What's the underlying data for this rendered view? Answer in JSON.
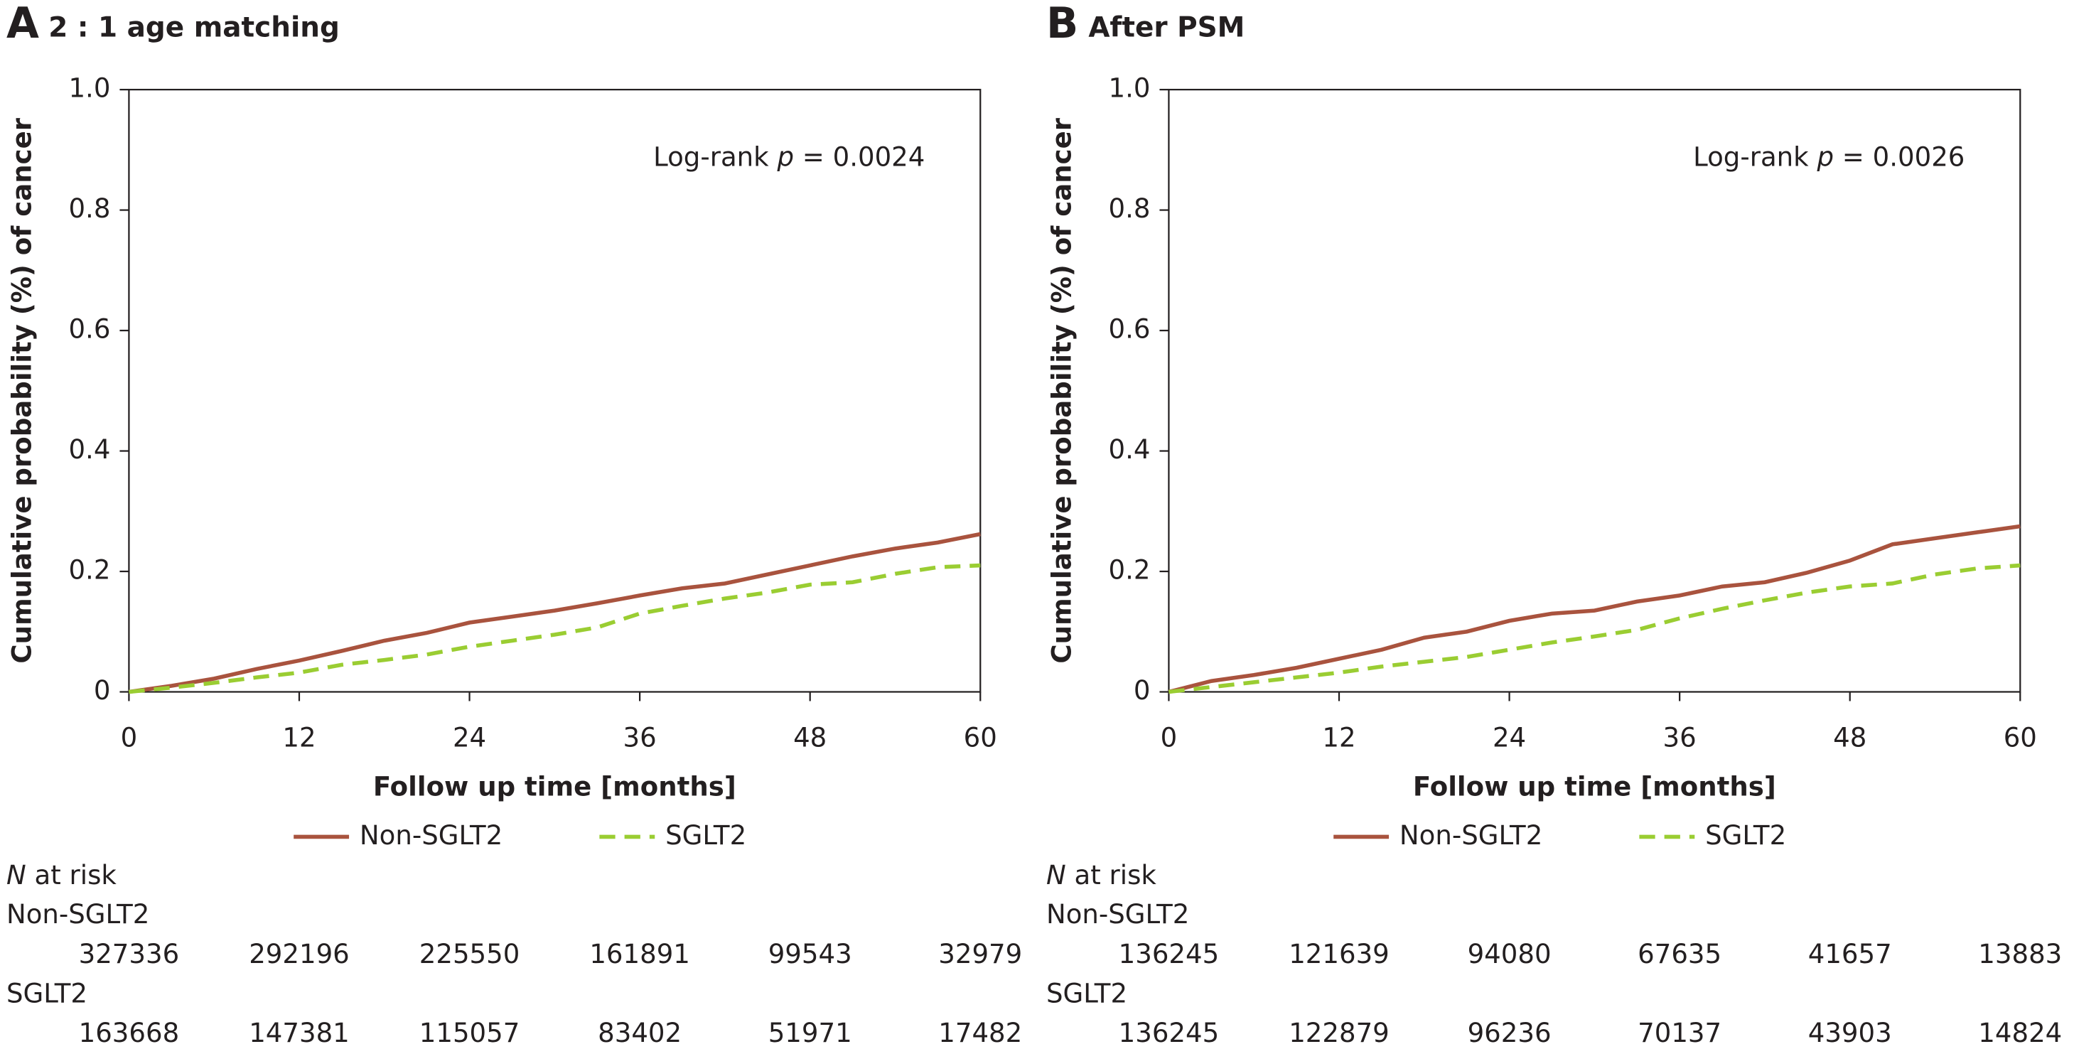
{
  "chart_data": [
    {
      "type": "line",
      "panel_label": "A",
      "title": "2 : 1 age matching",
      "annotation": {
        "prefix": "Log-rank ",
        "italic": "p",
        "suffix": " = 0.0024"
      },
      "xlabel": "Follow up time [months]",
      "ylabel": "Cumulative probability (%) of cancer",
      "x": [
        0,
        3,
        6,
        9,
        12,
        15,
        18,
        21,
        24,
        27,
        30,
        33,
        36,
        39,
        42,
        45,
        48,
        51,
        54,
        57,
        60
      ],
      "series": [
        {
          "name": "Non-SGLT2",
          "color": "#a9533e",
          "linestyle": "solid",
          "values": [
            0,
            0.01,
            0.022,
            0.038,
            0.052,
            0.068,
            0.085,
            0.098,
            0.115,
            0.125,
            0.135,
            0.147,
            0.16,
            0.172,
            0.18,
            0.195,
            0.21,
            0.225,
            0.238,
            0.248,
            0.262
          ]
        },
        {
          "name": "SGLT2",
          "color": "#9acd32",
          "linestyle": "dashed",
          "values": [
            0,
            0.007,
            0.015,
            0.024,
            0.032,
            0.045,
            0.053,
            0.062,
            0.075,
            0.085,
            0.095,
            0.107,
            0.13,
            0.143,
            0.155,
            0.165,
            0.178,
            0.182,
            0.196,
            0.207,
            0.21
          ]
        }
      ],
      "xlim": [
        0,
        60
      ],
      "ylim": [
        0,
        1
      ],
      "xticks": [
        0,
        12,
        24,
        36,
        48,
        60
      ],
      "yticks": [
        0,
        0.2,
        0.4,
        0.6,
        0.8,
        {
          "value": 1,
          "label": "1.0"
        }
      ],
      "risk_table": {
        "label_italic": "N",
        "label_rest": " at risk",
        "rows": [
          {
            "name": "Non-SGLT2",
            "values": [
              327336,
              292196,
              225550,
              161891,
              99543,
              32979
            ]
          },
          {
            "name": "SGLT2",
            "values": [
              163668,
              147381,
              115057,
              83402,
              51971,
              17482
            ]
          }
        ]
      }
    },
    {
      "type": "line",
      "panel_label": "B",
      "title": "After PSM",
      "annotation": {
        "prefix": "Log-rank ",
        "italic": "p",
        "suffix": " = 0.0026"
      },
      "xlabel": "Follow up time [months]",
      "ylabel": "Cumulative probability (%) of cancer",
      "x": [
        0,
        3,
        6,
        9,
        12,
        15,
        18,
        21,
        24,
        27,
        30,
        33,
        36,
        39,
        42,
        45,
        48,
        51,
        54,
        57,
        60
      ],
      "series": [
        {
          "name": "Non-SGLT2",
          "color": "#a9533e",
          "linestyle": "solid",
          "values": [
            0,
            0.018,
            0.028,
            0.04,
            0.055,
            0.07,
            0.09,
            0.1,
            0.118,
            0.13,
            0.135,
            0.15,
            0.16,
            0.175,
            0.182,
            0.198,
            0.218,
            0.245,
            0.255,
            0.265,
            0.275
          ]
        },
        {
          "name": "SGLT2",
          "color": "#9acd32",
          "linestyle": "dashed",
          "values": [
            0,
            0.008,
            0.016,
            0.024,
            0.032,
            0.042,
            0.05,
            0.058,
            0.07,
            0.082,
            0.092,
            0.103,
            0.122,
            0.138,
            0.152,
            0.165,
            0.175,
            0.18,
            0.195,
            0.205,
            0.21
          ]
        }
      ],
      "xlim": [
        0,
        60
      ],
      "ylim": [
        0,
        1
      ],
      "xticks": [
        0,
        12,
        24,
        36,
        48,
        60
      ],
      "yticks": [
        0,
        0.2,
        0.4,
        0.6,
        0.8,
        {
          "value": 1,
          "label": "1.0"
        }
      ],
      "risk_table": {
        "label_italic": "N",
        "label_rest": " at risk",
        "rows": [
          {
            "name": "Non-SGLT2",
            "values": [
              136245,
              121639,
              94080,
              67635,
              41657,
              13883
            ]
          },
          {
            "name": "SGLT2",
            "values": [
              136245,
              122879,
              96236,
              70137,
              43903,
              14824
            ]
          }
        ]
      }
    }
  ]
}
